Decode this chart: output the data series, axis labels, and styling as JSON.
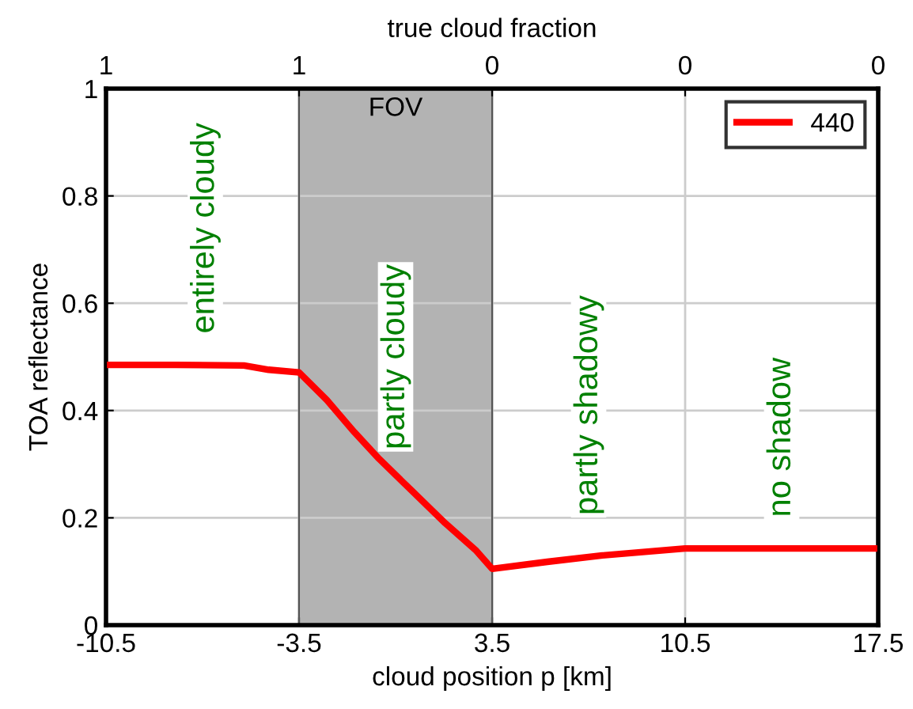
{
  "chart_data": {
    "type": "line",
    "xlabel": "cloud position p [km]",
    "ylabel": "TOA reflectance",
    "x2label": "true cloud fraction",
    "series": [
      {
        "name": "440",
        "color": "#ff0000",
        "x": [
          -10.5,
          -8,
          -5.5,
          -4.6,
          -3.5,
          -2.5,
          -1.5,
          -0.6,
          0.6,
          1.8,
          2.9,
          3.5,
          5.5,
          7.5,
          10.5,
          14,
          17.5
        ],
        "values": [
          0.485,
          0.485,
          0.484,
          0.476,
          0.471,
          0.42,
          0.36,
          0.31,
          0.25,
          0.19,
          0.14,
          0.105,
          0.118,
          0.13,
          0.143,
          0.143,
          0.143
        ]
      }
    ],
    "xlim": [
      -10.5,
      17.5
    ],
    "xticks": [
      -10.5,
      -3.5,
      3.5,
      10.5,
      17.5
    ],
    "ylim": [
      0,
      1
    ],
    "yticks": [
      0,
      0.2,
      0.4,
      0.6,
      0.8,
      1
    ],
    "bands": [
      {
        "axis": "x",
        "from": -3.5,
        "to": 3.5,
        "label": "FOV",
        "color": "#b3b3b3"
      }
    ],
    "annotations": [
      "entirely cloudy",
      "partly cloudy",
      "partly shadowy",
      "no shadow",
      "1",
      "1",
      "0",
      "0",
      "0"
    ],
    "grid": true,
    "legend": "top right",
    "line_style": "solid",
    "marker": "none"
  }
}
